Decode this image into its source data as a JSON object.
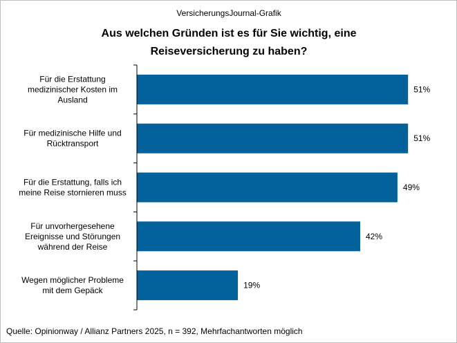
{
  "colors": {
    "bar": "#03619C",
    "axis": "#000000",
    "border": "#BFBFBF"
  },
  "header": {
    "subtitle": "VersicherungsJournal-Grafik"
  },
  "footer": {
    "source": "Quelle: Opinionway / Allianz Partners 2025, n = 392, Mehrfachantworten  möglich"
  },
  "chart_data": {
    "type": "bar",
    "orientation": "horizontal",
    "title_lines": [
      "Aus welchen Gründen ist es für Sie wichtig, eine",
      "Reiseversicherung zu haben?"
    ],
    "categories": [
      [
        "Für die Erstattung",
        "medizinischer Kosten im",
        "Ausland"
      ],
      [
        "Für medizinische Hilfe und",
        "Rücktransport"
      ],
      [
        "Für die Erstattung, falls ich",
        "meine Reise stornieren muss"
      ],
      [
        "Für unvorhergesehene",
        "Ereignisse und Störungen",
        "während der Reise"
      ],
      [
        "Wegen möglicher Probleme",
        "mit dem Gepäck"
      ]
    ],
    "values": [
      51,
      51,
      49,
      42,
      19
    ],
    "value_labels": [
      "51%",
      "51%",
      "49%",
      "42%",
      "19%"
    ],
    "unit": "%",
    "xlim": [
      0,
      55
    ],
    "xlabel": "",
    "ylabel": "",
    "grid": false,
    "legend": "none"
  }
}
